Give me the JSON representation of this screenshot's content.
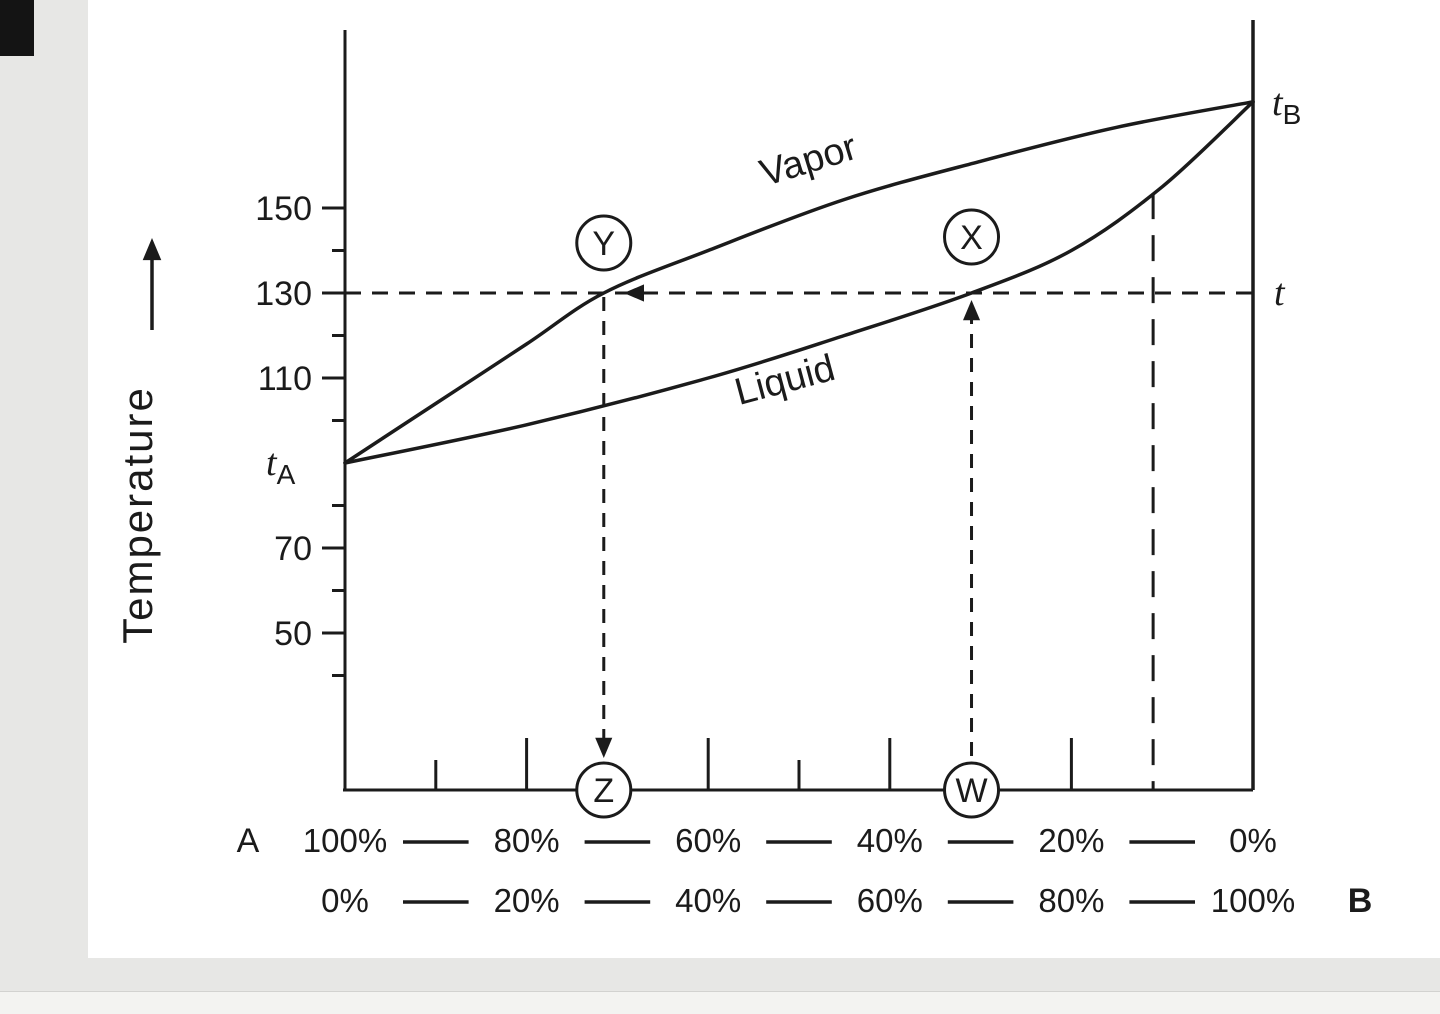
{
  "window": {
    "bg": "#e7e7e5",
    "panel_bg": "#ffffff",
    "corner_block": "#141414",
    "ink": "#1b1b1b"
  },
  "chart_data": {
    "type": "line",
    "ylabel": "Temperature",
    "y_axis": {
      "major_ticks": [
        150,
        130,
        110,
        70,
        50
      ],
      "minor_ticks": [
        140,
        120,
        100,
        80,
        60,
        40
      ]
    },
    "x_axis": {
      "component_a_row": {
        "label": "A",
        "ticks": [
          "100%",
          "80%",
          "60%",
          "40%",
          "20%",
          "0%"
        ]
      },
      "component_b_row": {
        "ticks": [
          "0%",
          "20%",
          "40%",
          "60%",
          "80%",
          "100%"
        ],
        "label": "B"
      }
    },
    "boiling_points": {
      "t_A": 90,
      "t_B": 175
    },
    "tie_line_temp": 130,
    "series": [
      {
        "name": "Vapor",
        "x_is": "percent_B",
        "points": [
          [
            0,
            90
          ],
          [
            10,
            104
          ],
          [
            20,
            118
          ],
          [
            28.5,
            130
          ],
          [
            40,
            140
          ],
          [
            55,
            152
          ],
          [
            70,
            161
          ],
          [
            85,
            169
          ],
          [
            100,
            175
          ]
        ]
      },
      {
        "name": "Liquid",
        "x_is": "percent_B",
        "points": [
          [
            0,
            90
          ],
          [
            20,
            99
          ],
          [
            40,
            110
          ],
          [
            55,
            120
          ],
          [
            69,
            130
          ],
          [
            80,
            140
          ],
          [
            90,
            155
          ],
          [
            100,
            175
          ]
        ]
      }
    ],
    "markers": [
      {
        "label": "Y",
        "percent_B": 28.5,
        "on": "vapor-curve"
      },
      {
        "label": "X",
        "percent_B": 69,
        "on": "liquid-curve"
      },
      {
        "label": "Z",
        "percent_B": 28.5,
        "on": "x-axis"
      },
      {
        "label": "W",
        "percent_B": 69,
        "on": "x-axis"
      }
    ],
    "dashed_guide_percent_B": 89,
    "point_labels": {
      "t_A": {
        "base": "t",
        "sub": "A"
      },
      "t_B": {
        "base": "t",
        "sub": "B"
      },
      "tie": "t"
    },
    "curve_labels": {
      "vapor": "Vapor",
      "liquid": "Liquid"
    }
  }
}
